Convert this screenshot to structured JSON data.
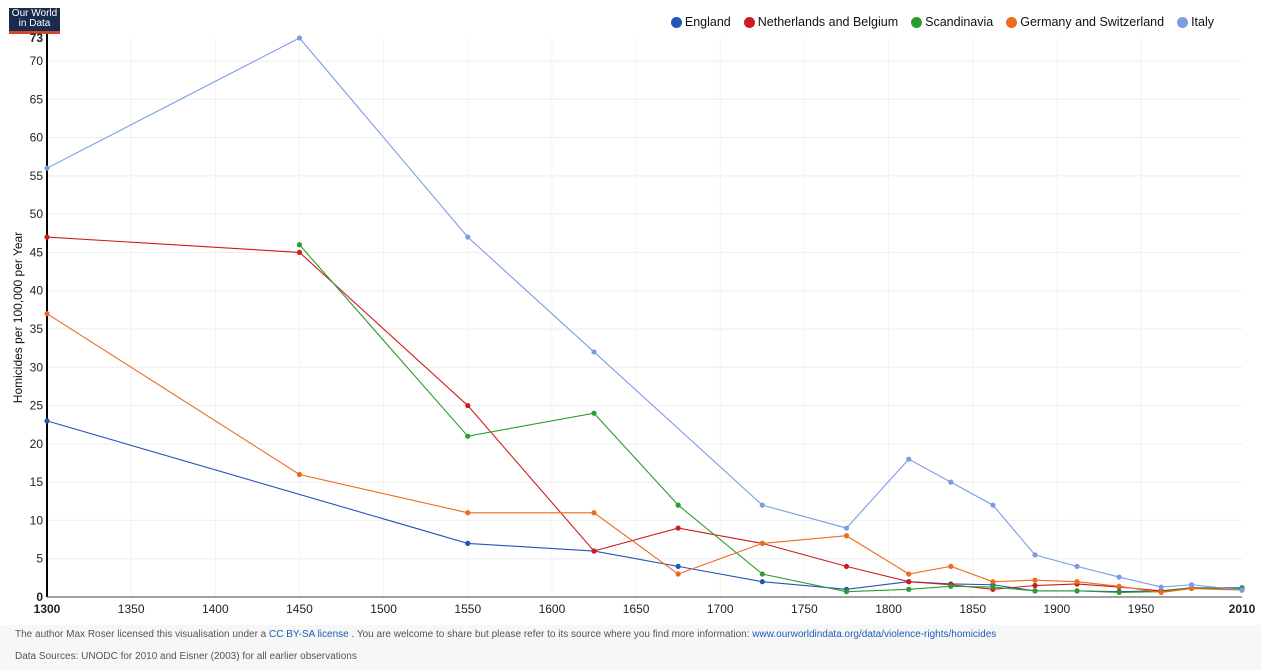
{
  "logo": {
    "line1": "Our World",
    "line2": "in Data"
  },
  "colors": {
    "England": "#2255b6",
    "Netherlands and Belgium": "#cf1b1b",
    "Scandinavia": "#2c9c2c",
    "Germany and Switzerland": "#ee6a1d",
    "Italy": "#7b9de3"
  },
  "chart_data": {
    "type": "line",
    "title": "",
    "xlabel": "",
    "ylabel": "Homicides per 100,000 per Year",
    "xlim": [
      1300,
      2010
    ],
    "ylim": [
      0,
      73
    ],
    "grid": true,
    "legend_position": "top-right",
    "x_ticks": [
      1350,
      1400,
      1450,
      1500,
      1550,
      1600,
      1650,
      1700,
      1750,
      1800,
      1850,
      1900,
      1950
    ],
    "x_tick_bold": [
      1300,
      2010
    ],
    "y_ticks": [
      5,
      10,
      15,
      20,
      25,
      30,
      35,
      40,
      45,
      50,
      55,
      60,
      65,
      70
    ],
    "y_tick_bold": [
      0,
      73
    ],
    "series": [
      {
        "name": "England",
        "points": [
          [
            1300,
            23
          ],
          [
            1550,
            7
          ],
          [
            1625,
            6
          ],
          [
            1675,
            4
          ],
          [
            1725,
            2
          ],
          [
            1775,
            1
          ],
          [
            1812,
            2
          ],
          [
            1837,
            1.7
          ],
          [
            1862,
            1.6
          ],
          [
            1887,
            0.8
          ],
          [
            1912,
            0.8
          ],
          [
            1937,
            0.7
          ],
          [
            1962,
            0.8
          ],
          [
            1980,
            1.2
          ],
          [
            2010,
            1.2
          ]
        ]
      },
      {
        "name": "Netherlands and Belgium",
        "points": [
          [
            1300,
            47
          ],
          [
            1450,
            45
          ],
          [
            1550,
            25
          ],
          [
            1625,
            6
          ],
          [
            1675,
            9
          ],
          [
            1725,
            7
          ],
          [
            1775,
            4
          ],
          [
            1812,
            2
          ],
          [
            1837,
            1.6
          ],
          [
            1862,
            1
          ],
          [
            1887,
            1.5
          ],
          [
            1912,
            1.7
          ],
          [
            1937,
            1.3
          ],
          [
            1962,
            0.8
          ],
          [
            1980,
            1.2
          ],
          [
            2010,
            1
          ]
        ]
      },
      {
        "name": "Scandinavia",
        "points": [
          [
            1450,
            46
          ],
          [
            1550,
            21
          ],
          [
            1625,
            24
          ],
          [
            1675,
            12
          ],
          [
            1725,
            3
          ],
          [
            1775,
            0.7
          ],
          [
            1812,
            1
          ],
          [
            1837,
            1.4
          ],
          [
            1862,
            1.3
          ],
          [
            1887,
            0.8
          ],
          [
            1912,
            0.8
          ],
          [
            1937,
            0.6
          ],
          [
            1962,
            0.7
          ],
          [
            1980,
            1.2
          ],
          [
            2010,
            1.1
          ]
        ]
      },
      {
        "name": "Germany and Switzerland",
        "points": [
          [
            1300,
            37
          ],
          [
            1450,
            16
          ],
          [
            1550,
            11
          ],
          [
            1625,
            11
          ],
          [
            1675,
            3
          ],
          [
            1725,
            7
          ],
          [
            1775,
            8
          ],
          [
            1812,
            3
          ],
          [
            1837,
            4
          ],
          [
            1862,
            2
          ],
          [
            1887,
            2.2
          ],
          [
            1912,
            2
          ],
          [
            1937,
            1.4
          ],
          [
            1962,
            0.6
          ],
          [
            1980,
            1.1
          ],
          [
            2010,
            0.9
          ]
        ]
      },
      {
        "name": "Italy",
        "points": [
          [
            1300,
            56
          ],
          [
            1450,
            73
          ],
          [
            1550,
            47
          ],
          [
            1625,
            32
          ],
          [
            1725,
            12
          ],
          [
            1775,
            9
          ],
          [
            1812,
            18
          ],
          [
            1837,
            15
          ],
          [
            1862,
            12
          ],
          [
            1887,
            5.5
          ],
          [
            1912,
            4
          ],
          [
            1937,
            2.6
          ],
          [
            1962,
            1.3
          ],
          [
            1980,
            1.6
          ],
          [
            2010,
            0.9
          ]
        ]
      }
    ]
  },
  "footer": {
    "line1_before": "The author Max Roser licensed this visualisation under a",
    "license_link": "CC BY-SA license",
    "line1_middle": ". You are welcome to share but please refer to its source where you  find more information:",
    "source_link": "www.ourworldindata.org/data/violence-rights/homicides",
    "line2": "Data Sources: UNODC for 2010 and Eisner (2003) for all earlier observations"
  }
}
